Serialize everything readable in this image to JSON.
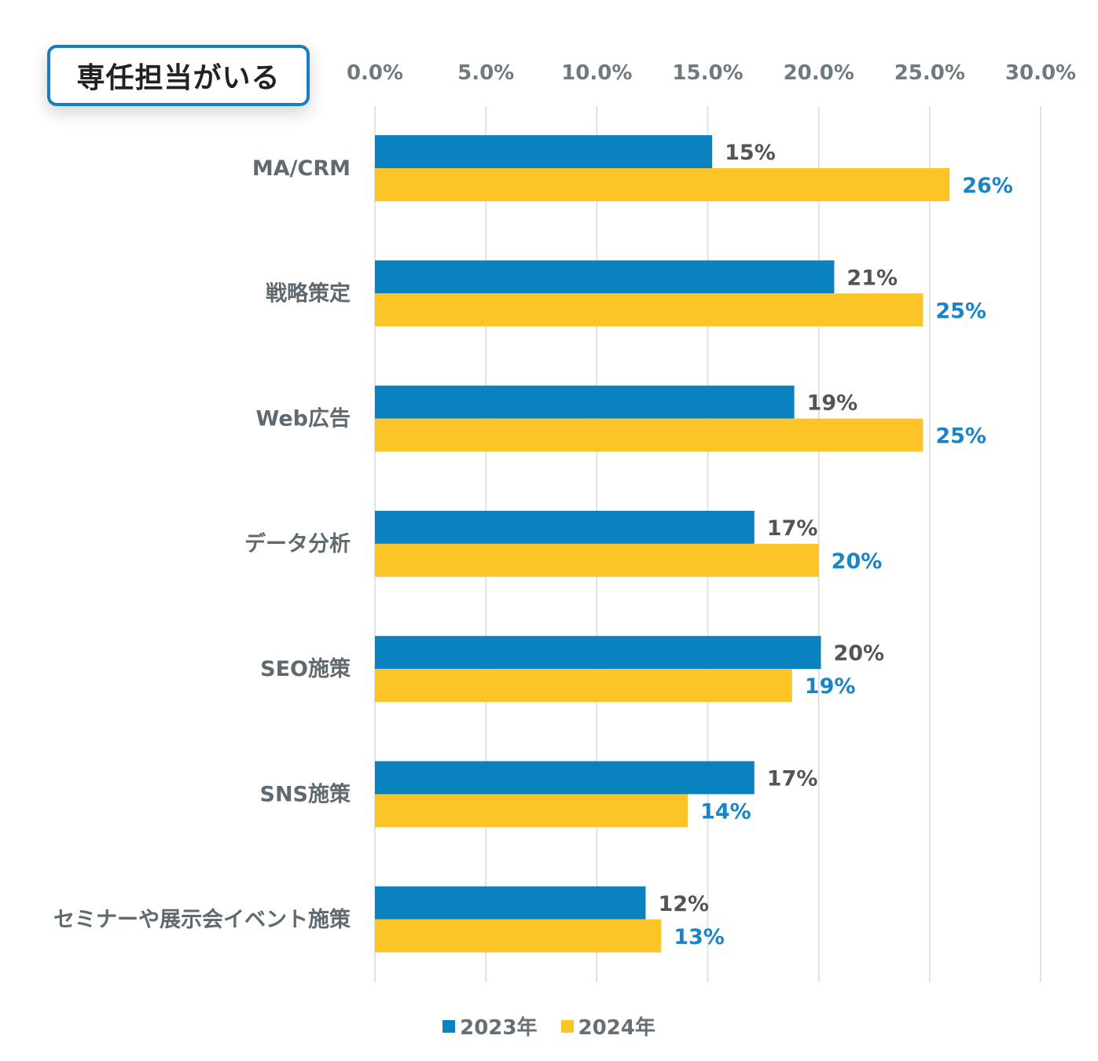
{
  "badge": {
    "label": "専任担当がいる"
  },
  "colors": {
    "series_2023": "#0a82c0",
    "series_2024": "#fcc426",
    "label_2023": "#555555",
    "label_2024": "#1a85c6",
    "axis_text": "#6f7a80",
    "category_text": "#5f6a70",
    "gridline": "#d9d9d9"
  },
  "chart_data": {
    "type": "bar",
    "orientation": "horizontal",
    "title": "専任担当がいる",
    "categories": [
      "MA/CRM",
      "戦略策定",
      "Web広告",
      "データ分析",
      "SEO施策",
      "SNS施策",
      "セミナーや展示会イベント施策"
    ],
    "series": [
      {
        "name": "2023年",
        "values": [
          15.2,
          20.7,
          18.9,
          17.1,
          20.1,
          17.1,
          12.2
        ],
        "labels": [
          "15%",
          "21%",
          "19%",
          "17%",
          "20%",
          "17%",
          "12%"
        ]
      },
      {
        "name": "2024年",
        "values": [
          25.9,
          24.7,
          24.7,
          20.0,
          18.8,
          14.1,
          12.9
        ],
        "labels": [
          "26%",
          "25%",
          "25%",
          "20%",
          "19%",
          "14%",
          "13%"
        ]
      }
    ],
    "xlim": [
      0,
      30
    ],
    "xticks": [
      "0.0%",
      "5.0%",
      "10.0%",
      "15.0%",
      "20.0%",
      "25.0%",
      "30.0%"
    ],
    "xtick_values": [
      0,
      5,
      10,
      15,
      20,
      25,
      30
    ],
    "grid": true,
    "legend_position": "bottom-center"
  },
  "legend": {
    "items": [
      {
        "label": "2023年"
      },
      {
        "label": "2024年"
      }
    ]
  }
}
